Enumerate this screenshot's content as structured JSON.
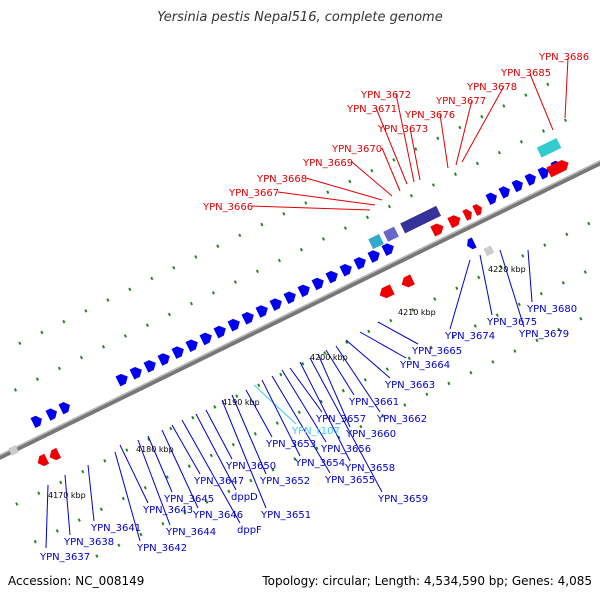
{
  "title": "Yersinia pestis Nepal516, complete genome",
  "footer": {
    "accession": "Accession: NC_008149",
    "topology": "Topology: circular; Length: 4,534,590 bp; Genes: 4,085"
  },
  "colors": {
    "red_label": "#e00000",
    "blue_label": "#0000cc",
    "rrna_label": "#33ccff",
    "backbone": "#888888",
    "tick_green": "#228822"
  },
  "ticks": [
    {
      "label": "4170 kbp"
    },
    {
      "label": "4180 kbp"
    },
    {
      "label": "4190 kbp"
    },
    {
      "label": "4200 kbp"
    },
    {
      "label": "4210 kbp"
    },
    {
      "label": "4220 kbp"
    }
  ],
  "red_labels": [
    "YPN_3666",
    "YPN_3667",
    "YPN_3668",
    "YPN_3669",
    "YPN_3670",
    "YPN_3671",
    "YPN_3672",
    "YPN_3673",
    "YPN_3676",
    "YPN_3677",
    "YPN_3678",
    "YPN_3685",
    "YPN_3686"
  ],
  "blue_labels": [
    "YPN_3637",
    "YPN_3638",
    "YPN_3641",
    "YPN_3642",
    "YPN_3643",
    "YPN_3644",
    "YPN_3645",
    "YPN_3646",
    "YPN_3647",
    "dppF",
    "dppD",
    "YPN_3650",
    "YPN_3651",
    "YPN_3652",
    "YPN_3653",
    "YPN_r107",
    "YPN_3654",
    "YPN_3655",
    "YPN_3656",
    "YPN_3657",
    "YPN_3658",
    "YPN_3659",
    "YPN_3660",
    "YPN_3661",
    "YPN_3662",
    "YPN_3663",
    "YPN_3664",
    "YPN_3665",
    "YPN_3674",
    "YPN_3675",
    "YPN_3679",
    "YPN_3680"
  ]
}
